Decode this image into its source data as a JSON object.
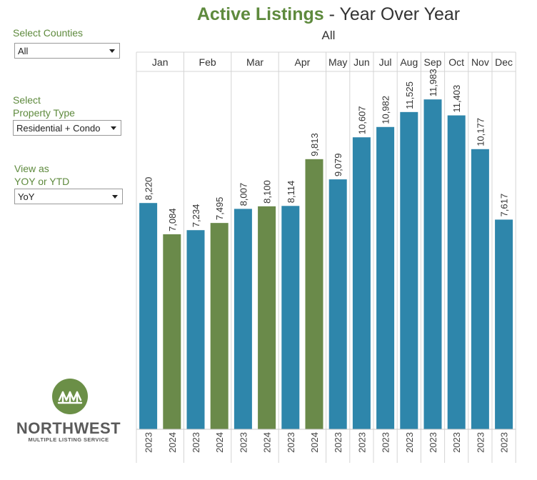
{
  "filters": {
    "counties": {
      "label": "Select Counties",
      "value": "All"
    },
    "property_type": {
      "label_line1": "Select",
      "label_line2": "Property Type",
      "value": "Residential + Condo"
    },
    "view": {
      "label_line1": "View as",
      "label_line2": "YOY or YTD",
      "value": "YoY"
    }
  },
  "header": {
    "title_accent": "Active Listings",
    "title_rest": " - Year Over Year",
    "subtitle": "All"
  },
  "logo": {
    "name": "NORTHWEST",
    "tagline": "MULTIPLE LISTING SERVICE"
  },
  "colors": {
    "y2023": "#2e86ab",
    "y2024": "#6a8a4a",
    "accent": "#5e8a3d"
  },
  "chart_data": {
    "type": "bar",
    "title": "Active Listings - Year Over Year",
    "subtitle": "All",
    "ylim": [
      0,
      13000
    ],
    "grid": false,
    "groups": [
      {
        "month": "Jan",
        "bars": [
          {
            "year": "2023",
            "value": 8220,
            "label": "8,220"
          },
          {
            "year": "2024",
            "value": 7084,
            "label": "7,084"
          }
        ]
      },
      {
        "month": "Feb",
        "bars": [
          {
            "year": "2023",
            "value": 7234,
            "label": "7,234"
          },
          {
            "year": "2024",
            "value": 7495,
            "label": "7,495"
          }
        ]
      },
      {
        "month": "Mar",
        "bars": [
          {
            "year": "2023",
            "value": 8007,
            "label": "8,007"
          },
          {
            "year": "2024",
            "value": 8100,
            "label": "8,100"
          }
        ]
      },
      {
        "month": "Apr",
        "bars": [
          {
            "year": "2023",
            "value": 8114,
            "label": "8,114"
          },
          {
            "year": "2024",
            "value": 9813,
            "label": "9,813"
          }
        ]
      },
      {
        "month": "May",
        "bars": [
          {
            "year": "2023",
            "value": 9079,
            "label": "9,079"
          }
        ]
      },
      {
        "month": "Jun",
        "bars": [
          {
            "year": "2023",
            "value": 10607,
            "label": "10,607"
          }
        ]
      },
      {
        "month": "Jul",
        "bars": [
          {
            "year": "2023",
            "value": 10982,
            "label": "10,982"
          }
        ]
      },
      {
        "month": "Aug",
        "bars": [
          {
            "year": "2023",
            "value": 11525,
            "label": "11,525"
          }
        ]
      },
      {
        "month": "Sep",
        "bars": [
          {
            "year": "2023",
            "value": 11983,
            "label": "11,983"
          }
        ]
      },
      {
        "month": "Oct",
        "bars": [
          {
            "year": "2023",
            "value": 11403,
            "label": "11,403"
          }
        ]
      },
      {
        "month": "Nov",
        "bars": [
          {
            "year": "2023",
            "value": 10177,
            "label": "10,177"
          }
        ]
      },
      {
        "month": "Dec",
        "bars": [
          {
            "year": "2023",
            "value": 7617,
            "label": "7,617"
          }
        ]
      }
    ]
  }
}
